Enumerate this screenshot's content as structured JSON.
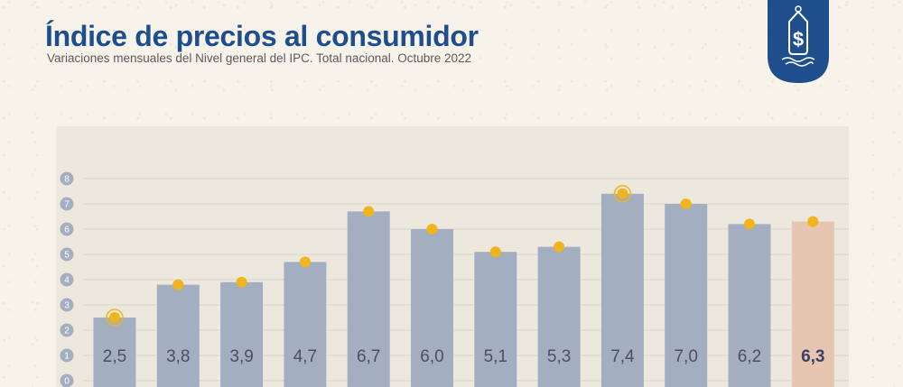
{
  "header": {
    "title": "Índice de precios al consumidor",
    "subtitle": "Variaciones mensuales del Nivel general del IPC. Total nacional. Octubre 2022"
  },
  "logo": {
    "icon": "price-tag-dollar-icon",
    "glyph": "$"
  },
  "colors": {
    "title": "#1f4e8c",
    "bar": "#a3aec1",
    "bar_highlight": "#e6c6b1",
    "dot": "#f0b41c",
    "label": "#4a5060",
    "label_highlight": "#3a4068",
    "axis_badge": "#a3aec1",
    "logo": "#1f4e8c"
  },
  "chart_data": {
    "type": "bar",
    "categories": [
      "",
      "",
      "",
      "",
      "",
      "",
      "",
      "",
      "",
      "",
      "",
      ""
    ],
    "values": [
      2.5,
      3.8,
      3.9,
      4.7,
      6.7,
      6.0,
      5.1,
      5.3,
      7.4,
      7.0,
      6.2,
      6.3
    ],
    "labels": [
      "2,5",
      "3,8",
      "3,9",
      "4,7",
      "6,7",
      "6,0",
      "5,1",
      "5,3",
      "7,4",
      "7,0",
      "6,2",
      "6,3"
    ],
    "highlight_index": 11,
    "ringed_indices": [
      0,
      8
    ],
    "yticks": [
      "0",
      "1",
      "2",
      "3",
      "4",
      "5",
      "6",
      "7",
      "8"
    ],
    "ylim": [
      0,
      8
    ],
    "grid": true
  }
}
